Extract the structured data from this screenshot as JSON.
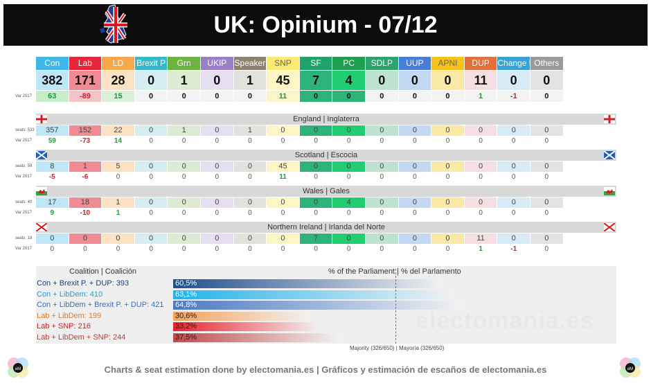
{
  "header": {
    "title": "UK: Opinium - 07/12"
  },
  "parties": [
    {
      "name": "Con",
      "seats": "382",
      "var": "63",
      "hdr": "#3fb7e8",
      "bg": "#bfe6f7",
      "varcol": "#1a9c3e"
    },
    {
      "name": "Lab",
      "seats": "171",
      "var": "-89",
      "hdr": "#e6263a",
      "bg": "#f08a93",
      "varcol": "#d71920"
    },
    {
      "name": "LD",
      "seats": "28",
      "var": "15",
      "hdr": "#f7a94a",
      "bg": "#fde1c3",
      "varcol": "#1a9c3e"
    },
    {
      "name": "Brexit P",
      "seats": "0",
      "var": "0",
      "hdr": "#37b8c9",
      "bg": "#d6eef2",
      "varcol": "#111111"
    },
    {
      "name": "Grn",
      "seats": "1",
      "var": "0",
      "hdr": "#6cb33f",
      "bg": "#dcebd2",
      "varcol": "#111111"
    },
    {
      "name": "UKIP",
      "seats": "0",
      "var": "0",
      "hdr": "#9b7fc6",
      "bg": "#e6def1",
      "varcol": "#111111"
    },
    {
      "name": "Speaker",
      "seats": "1",
      "var": "0",
      "hdr": "#8c8270",
      "bg": "#e3e1dc",
      "varcol": "#111111"
    },
    {
      "name": "SNP",
      "seats": "45",
      "var": "11",
      "hdr": "#fbeb72",
      "bg": "#fdf6c4",
      "varcol": "#1a9c3e"
    },
    {
      "name": "SF",
      "seats": "7",
      "var": "0",
      "hdr": "#20a36b",
      "bg": "#2db37a",
      "varcol": "#111111"
    },
    {
      "name": "PC",
      "seats": "4",
      "var": "0",
      "hdr": "#1e9e4f",
      "bg": "#22cc70",
      "varcol": "#111111"
    },
    {
      "name": "SDLP",
      "seats": "0",
      "var": "0",
      "hdr": "#2ea36b",
      "bg": "#bfe3d1",
      "varcol": "#111111"
    },
    {
      "name": "UUP",
      "seats": "0",
      "var": "0",
      "hdr": "#4a7ed6",
      "bg": "#c4d7f3",
      "varcol": "#111111"
    },
    {
      "name": "APNI",
      "seats": "0",
      "var": "0",
      "hdr": "#f7c21a",
      "bg": "#fbe9a6",
      "varcol": "#111111"
    },
    {
      "name": "DUP",
      "seats": "11",
      "var": "1",
      "hdr": "#e2703c",
      "bg": "#f6dfe2",
      "varcol": "#1a9c3e"
    },
    {
      "name": "Change UK",
      "seats": "0",
      "var": "-1",
      "hdr": "#37a2d6",
      "bg": "#d7ebf6",
      "varcol": "#d71920"
    },
    {
      "name": "Others",
      "seats": "0",
      "var": "0",
      "hdr": "#9a9a9a",
      "bg": "#e3e3e3",
      "varcol": "#111111"
    }
  ],
  "var_label": "Var 2017",
  "regions": [
    {
      "name": "England | Inglaterra",
      "seats_label": "seats: 533",
      "seats": [
        "357",
        "152",
        "22",
        "0",
        "1",
        "0",
        "1",
        "0",
        "0",
        "0",
        "0",
        "0",
        "0",
        "0",
        "0",
        "0"
      ],
      "var": [
        "59",
        "-73",
        "14",
        "0",
        "0",
        "0",
        "0",
        "0",
        "0",
        "0",
        "0",
        "0",
        "0",
        "0",
        "0",
        "0"
      ]
    },
    {
      "name": "Scotland | Escocia",
      "seats_label": "seats: 59",
      "seats": [
        "8",
        "1",
        "5",
        "0",
        "0",
        "0",
        "0",
        "45",
        "0",
        "0",
        "0",
        "0",
        "0",
        "0",
        "0",
        "0"
      ],
      "var": [
        "-5",
        "-6",
        "0",
        "0",
        "0",
        "0",
        "0",
        "11",
        "0",
        "0",
        "0",
        "0",
        "0",
        "0",
        "0",
        "0"
      ]
    },
    {
      "name": "Wales | Gales",
      "seats_label": "seats: 40",
      "seats": [
        "17",
        "18",
        "1",
        "0",
        "0",
        "0",
        "0",
        "0",
        "0",
        "4",
        "0",
        "0",
        "0",
        "0",
        "0",
        "0"
      ],
      "var": [
        "9",
        "-10",
        "1",
        "0",
        "0",
        "0",
        "0",
        "0",
        "0",
        "0",
        "0",
        "0",
        "0",
        "0",
        "0",
        "0"
      ]
    },
    {
      "name": "Northern Ireland | Irlanda del Norte",
      "seats_label": "seats: 18",
      "seats": [
        "0",
        "0",
        "0",
        "0",
        "0",
        "0",
        "0",
        "0",
        "7",
        "0",
        "0",
        "0",
        "0",
        "11",
        "0",
        "0"
      ],
      "var": [
        "0",
        "0",
        "0",
        "0",
        "0",
        "0",
        "0",
        "0",
        "0",
        "0",
        "0",
        "0",
        "0",
        "1",
        "-1",
        "0"
      ]
    }
  ],
  "coalitions": {
    "header_left": "Coalition | Coalición",
    "header_right": "% of the Parliament | % del Parlamento",
    "items": [
      {
        "label": "Con + Brexit P. + DUP: 393",
        "pct": 60.5,
        "pct_label": "60,5%",
        "color": "#1f4e8c",
        "textcolor": "#1f3f7a"
      },
      {
        "label": "Con + LibDem: 410",
        "pct": 63.1,
        "pct_label": "63,1%",
        "color": "#21b3ea",
        "textcolor": "#1aa0d8"
      },
      {
        "label": "Con + LibDem + Brexit P. + DUP: 421",
        "pct": 64.8,
        "pct_label": "64,8%",
        "color": "#4a79c2",
        "textcolor": "#3a6fb8"
      },
      {
        "label": "Lab + LibDem: 199",
        "pct": 30.6,
        "pct_label": "30,6%",
        "color": "#f5a05a",
        "textcolor": "#e07b2a"
      },
      {
        "label": "Lab + SNP: 216",
        "pct": 33.2,
        "pct_label": "33,2%",
        "color": "#e8232f",
        "textcolor": "#d71920"
      },
      {
        "label": "Lab + LibDem + SNP: 244",
        "pct": 37.5,
        "pct_label": "37,5%",
        "color": "#c14a4a",
        "textcolor": "#b3403f"
      }
    ],
    "majority_label": "Majority (326/650) | Mayoría (326/650)",
    "majority_pct": 50.2
  },
  "watermark": "electomania.es",
  "footer": "Charts & seat estimation done by electomania.es  |  Gráficos y estimación de escaños de electomania.es",
  "chart_data": {
    "type": "table",
    "title": "UK: Opinium - 07/12",
    "columns": [
      "Con",
      "Lab",
      "LD",
      "Brexit P",
      "Grn",
      "UKIP",
      "Speaker",
      "SNP",
      "SF",
      "PC",
      "SDLP",
      "UUP",
      "APNI",
      "DUP",
      "Change UK",
      "Others"
    ],
    "seats": [
      382,
      171,
      28,
      0,
      1,
      0,
      1,
      45,
      7,
      4,
      0,
      0,
      0,
      11,
      0,
      0
    ],
    "var_2017": [
      63,
      -89,
      15,
      0,
      0,
      0,
      0,
      11,
      0,
      0,
      0,
      0,
      0,
      1,
      -1,
      0
    ],
    "regions": {
      "England | Inglaterra": {
        "seats": [
          357,
          152,
          22,
          0,
          1,
          0,
          1,
          0,
          0,
          0,
          0,
          0,
          0,
          0,
          0,
          0
        ],
        "var": [
          59,
          -73,
          14,
          0,
          0,
          0,
          0,
          0,
          0,
          0,
          0,
          0,
          0,
          0,
          0,
          0
        ]
      },
      "Scotland | Escocia": {
        "seats": [
          8,
          1,
          5,
          0,
          0,
          0,
          0,
          45,
          0,
          0,
          0,
          0,
          0,
          0,
          0,
          0
        ],
        "var": [
          -5,
          -6,
          0,
          0,
          0,
          0,
          0,
          11,
          0,
          0,
          0,
          0,
          0,
          0,
          0,
          0
        ]
      },
      "Wales | Gales": {
        "seats": [
          17,
          18,
          1,
          0,
          0,
          0,
          0,
          0,
          0,
          4,
          0,
          0,
          0,
          0,
          0,
          0
        ],
        "var": [
          9,
          -10,
          1,
          0,
          0,
          0,
          0,
          0,
          0,
          0,
          0,
          0,
          0,
          0,
          0,
          0
        ]
      },
      "Northern Ireland | Irlanda del Norte": {
        "seats": [
          0,
          0,
          0,
          0,
          0,
          0,
          0,
          0,
          7,
          0,
          0,
          0,
          0,
          11,
          0,
          0
        ],
        "var": [
          0,
          0,
          0,
          0,
          0,
          0,
          0,
          0,
          0,
          0,
          0,
          0,
          0,
          1,
          -1,
          0
        ]
      }
    },
    "coalitions": {
      "categories": [
        "Con + Brexit P. + DUP: 393",
        "Con + LibDem: 410",
        "Con + LibDem + Brexit P. + DUP: 421",
        "Lab + LibDem: 199",
        "Lab + SNP: 216",
        "Lab + LibDem + SNP: 244"
      ],
      "values": [
        60.5,
        63.1,
        64.8,
        30.6,
        33.2,
        37.5
      ],
      "majority": 326
    }
  }
}
